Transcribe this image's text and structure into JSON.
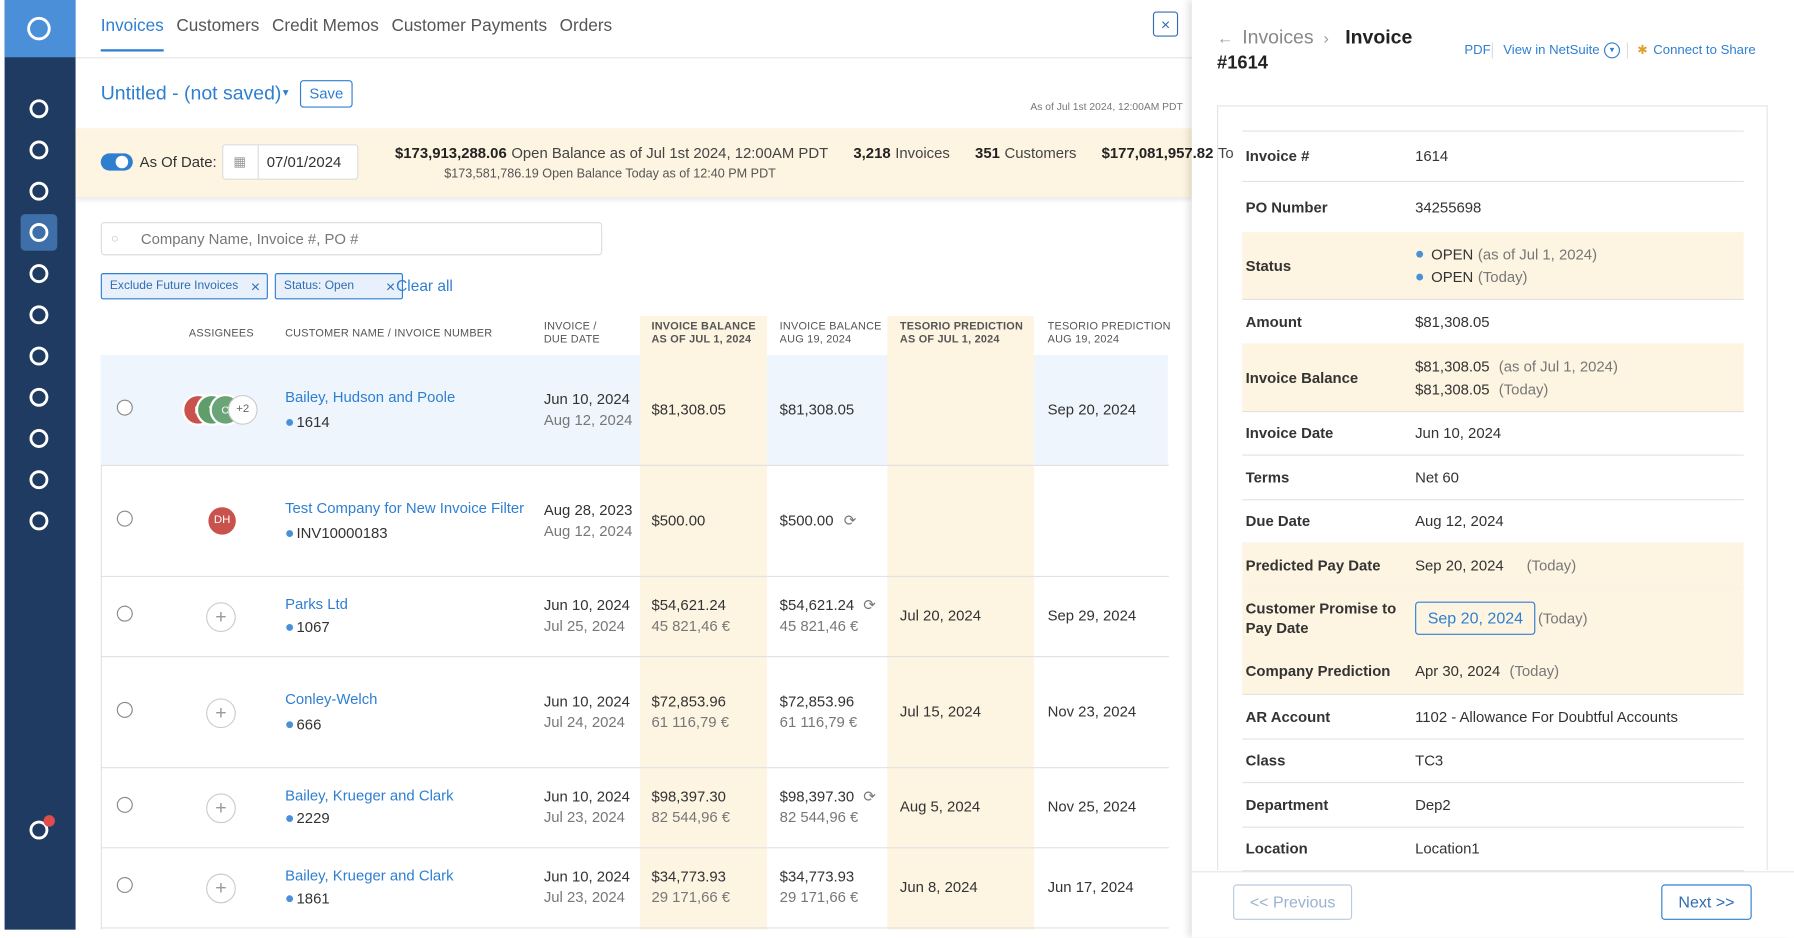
{
  "nav_tabs": [
    "Invoices",
    "Customers",
    "Credit Memos",
    "Customer Payments",
    "Orders"
  ],
  "view": {
    "name": "Untitled - (not saved)",
    "save": "Save",
    "as_of": "As of Jul 1st 2024, 12:00AM PDT"
  },
  "summary": {
    "toggle_label": "As Of Date:",
    "date": "07/01/2024",
    "open_balance": "$173,913,288.06",
    "open_balance_label": "Open Balance as of Jul 1st 2024, 12:00AM PDT",
    "today_balance": "$173,581,786.19 Open Balance Today as of 12:40 PM PDT",
    "invoices_count": "3,218",
    "invoices_label": "Invoices",
    "customers_count": "351",
    "customers_label": "Customers",
    "total": "$177,081,957.82",
    "total_label": "To"
  },
  "search": {
    "placeholder": "Company Name, Invoice #, PO #"
  },
  "filters": {
    "chips": [
      "Exclude Future Invoices",
      "Status: Open"
    ],
    "clear": "Clear all"
  },
  "table": {
    "headers": [
      [
        "ASSIGNEES"
      ],
      [
        "CUSTOMER NAME / INVOICE NUMBER"
      ],
      [
        "INVOICE /",
        "DUE DATE"
      ],
      [
        "INVOICE BALANCE",
        "AS OF JUL 1, 2024"
      ],
      [
        "INVOICE BALANCE",
        "AUG 19, 2024"
      ],
      [
        "TESORIO PREDICTION",
        "AS OF JUL 1, 2024"
      ],
      [
        "TESORIO PREDICTION",
        "AUG 19, 2024"
      ]
    ],
    "rows": [
      {
        "assignees": [
          {
            "initials": "D",
            "color": "#c9524d"
          },
          {
            "initials": "Y",
            "color": "#5f9d6b"
          },
          {
            "initials": "O",
            "color": "#6aa477"
          }
        ],
        "assignee_more": "+2",
        "customer": "Bailey, Hudson and Poole",
        "invoice": "1614",
        "invoice_date": "Jun 10, 2024",
        "due_date": "Aug 12, 2024",
        "balance_jul": "$81,308.05",
        "balance_aug": "$81,308.05",
        "pred_aug": "Sep 20, 2024",
        "selected": true
      },
      {
        "assignees": [
          {
            "initials": "DH",
            "color": "#c9524d"
          }
        ],
        "customer": "Test Company for New Invoice Filter",
        "invoice": "INV10000183",
        "invoice_date": "Aug 28, 2023",
        "due_date": "Aug 12, 2024",
        "balance_jul": "$500.00",
        "balance_aug": "$500.00",
        "sync_icon": true
      },
      {
        "customer": "Parks Ltd",
        "invoice": "1067",
        "invoice_date": "Jun 10, 2024",
        "due_date": "Jul 25, 2024",
        "balance_jul": "$54,621.24",
        "balance_jul_eur": "45 821,46 €",
        "balance_aug": "$54,621.24",
        "balance_aug_eur": "45 821,46 €",
        "sync_icon": true,
        "pred_jul": "Jul 20, 2024",
        "pred_aug": "Sep 29, 2024"
      },
      {
        "customer": "Conley-Welch",
        "invoice": "666",
        "invoice_date": "Jun 10, 2024",
        "due_date": "Jul 24, 2024",
        "balance_jul": "$72,853.96",
        "balance_jul_eur": "61 116,79 €",
        "balance_aug": "$72,853.96",
        "balance_aug_eur": "61 116,79 €",
        "pred_jul": "Jul 15, 2024",
        "pred_aug": "Nov 23, 2024"
      },
      {
        "customer": "Bailey, Krueger and Clark",
        "invoice": "2229",
        "invoice_date": "Jun 10, 2024",
        "due_date": "Jul 23, 2024",
        "balance_jul": "$98,397.30",
        "balance_jul_eur": "82 544,96 €",
        "balance_aug": "$98,397.30",
        "balance_aug_eur": "82 544,96 €",
        "sync_icon": true,
        "pred_jul": "Aug 5, 2024",
        "pred_aug": "Nov 25, 2024"
      },
      {
        "customer": "Bailey, Krueger and Clark",
        "invoice": "1861",
        "invoice_date": "Jun 10, 2024",
        "due_date": "Jul 23, 2024",
        "balance_jul": "$34,773.93",
        "balance_jul_eur": "29 171,66 €",
        "balance_aug": "$34,773.93",
        "balance_aug_eur": "29 171,66 €",
        "pred_jul": "Jun 8, 2024",
        "pred_aug": "Jun 17, 2024"
      }
    ]
  },
  "panel": {
    "breadcrumb": "Invoices",
    "title": "Invoice",
    "number": "#1614",
    "links": [
      "PDF",
      "View in NetSuite",
      "Connect to Share"
    ],
    "fields": [
      {
        "label": "Invoice #",
        "lines": [
          {
            "text": "1614"
          }
        ]
      },
      {
        "label": "PO Number",
        "lines": [
          {
            "text": "34255698"
          }
        ]
      },
      {
        "label": "Status",
        "highlight": true,
        "dot": true,
        "lines": [
          {
            "text": "OPEN",
            "note": "(as of Jul 1, 2024)"
          },
          {
            "text": "OPEN",
            "note": "(Today)"
          }
        ]
      },
      {
        "label": "Amount",
        "lines": [
          {
            "text": "$81,308.05"
          }
        ]
      },
      {
        "label": "Invoice Balance",
        "highlight": true,
        "lines": [
          {
            "text": "$81,308.05",
            "note": "(as of Jul 1, 2024)"
          },
          {
            "text": "$81,308.05",
            "note": "(Today)"
          }
        ]
      },
      {
        "label": "Invoice Date",
        "lines": [
          {
            "text": "Jun 10, 2024"
          }
        ]
      },
      {
        "label": "Terms",
        "lines": [
          {
            "text": "Net 60"
          }
        ]
      },
      {
        "label": "Due Date",
        "lines": [
          {
            "text": "Aug 12, 2024"
          }
        ]
      },
      {
        "label": "Predicted Pay Date",
        "highlight": true,
        "lines": [
          {
            "text": "Sep 20, 2024",
            "note": "(Today)"
          }
        ]
      },
      {
        "label": "Customer Promise to Pay Date",
        "highlight": true,
        "button": true,
        "lines": [
          {
            "text": "Sep 20, 2024",
            "note": "(Today)"
          }
        ]
      },
      {
        "label": "Company Prediction",
        "highlight": true,
        "lines": [
          {
            "text": "Apr 30, 2024",
            "note": "(Today)"
          }
        ]
      },
      {
        "label": "AR Account",
        "lines": [
          {
            "text": "1102 - Allowance For Doubtful Accounts"
          }
        ]
      },
      {
        "label": "Class",
        "lines": [
          {
            "text": "TC3"
          }
        ]
      },
      {
        "label": "Department",
        "lines": [
          {
            "text": "Dep2"
          }
        ]
      },
      {
        "label": "Location",
        "lines": [
          {
            "text": "Location1"
          }
        ]
      }
    ],
    "previous": "<< Previous",
    "next": "Next >>"
  }
}
